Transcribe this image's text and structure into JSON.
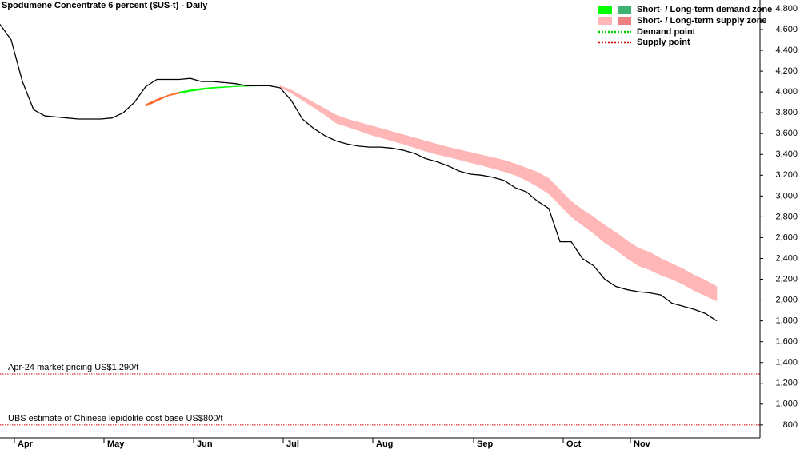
{
  "chart_data": {
    "type": "line",
    "title": "Spodumene Concentrate 6 percent ($US-t) - Daily",
    "categories": [
      null,
      "Apr",
      null,
      null,
      null,
      null,
      null,
      null,
      null,
      "May",
      null,
      null,
      null,
      null,
      null,
      null,
      null,
      "Jun",
      null,
      null,
      null,
      null,
      null,
      null,
      null,
      "Jul",
      null,
      null,
      null,
      null,
      null,
      null,
      null,
      "Aug",
      null,
      null,
      null,
      null,
      null,
      null,
      null,
      null,
      "Sep",
      null,
      null,
      null,
      null,
      null,
      null,
      null,
      "Oct",
      null,
      null,
      null,
      null,
      null,
      "Nov",
      null,
      null,
      null,
      null,
      null,
      null,
      null,
      null
    ],
    "series": [
      {
        "color": "#000000",
        "values": [
          4650,
          4500,
          4100,
          3830,
          3770,
          3760,
          3750,
          3740,
          3740,
          3740,
          3750,
          3800,
          3900,
          4050,
          4120,
          4120,
          4120,
          4130,
          4100,
          4100,
          4090,
          4080,
          4060,
          4060,
          4060,
          4040,
          3920,
          3740,
          3650,
          3580,
          3530,
          3500,
          3480,
          3470,
          3470,
          3460,
          3440,
          3410,
          3360,
          3330,
          3290,
          3240,
          3210,
          3200,
          3180,
          3150,
          3080,
          3040,
          2950,
          2880,
          2560,
          2560,
          2400,
          2330,
          2200,
          2130,
          2100,
          2080,
          2070,
          2050,
          1970,
          1940,
          1910,
          1870,
          1800
        ]
      }
    ],
    "zones": [
      {
        "name": "Short- / Long-term demand zone",
        "colors": [
          "#00ff00",
          "#3cb371"
        ],
        "upper": [
          null,
          null,
          null,
          null,
          null,
          null,
          null,
          null,
          null,
          null,
          null,
          null,
          null,
          null,
          null,
          null,
          4000,
          4020,
          4035,
          4045,
          4050,
          4055,
          4058,
          4060,
          4060,
          null,
          null,
          null,
          null,
          null,
          null,
          null,
          null,
          null,
          null,
          null,
          null,
          null,
          null,
          null,
          null,
          null,
          null,
          null,
          null,
          null,
          null,
          null,
          null,
          null,
          null,
          null,
          null,
          null,
          null,
          null,
          null,
          null,
          null,
          null,
          null,
          null,
          null,
          null,
          null
        ],
        "lower": [
          null,
          null,
          null,
          null,
          null,
          null,
          null,
          null,
          null,
          null,
          null,
          null,
          null,
          null,
          null,
          null,
          3985,
          4005,
          4020,
          4035,
          4042,
          4050,
          4054,
          4056,
          4058,
          null,
          null,
          null,
          null,
          null,
          null,
          null,
          null,
          null,
          null,
          null,
          null,
          null,
          null,
          null,
          null,
          null,
          null,
          null,
          null,
          null,
          null,
          null,
          null,
          null,
          null,
          null,
          null,
          null,
          null,
          null,
          null,
          null,
          null,
          null,
          null,
          null,
          null,
          null,
          null
        ]
      },
      {
        "name": "Short- / Long-term supply zone",
        "colors": [
          "#ffb6b6",
          "#f08080"
        ],
        "upper": [
          null,
          null,
          null,
          null,
          null,
          null,
          null,
          null,
          null,
          null,
          null,
          null,
          null,
          null,
          null,
          null,
          null,
          null,
          null,
          null,
          null,
          null,
          null,
          null,
          null,
          4060,
          4020,
          3960,
          3900,
          3840,
          3780,
          3740,
          3710,
          3680,
          3650,
          3620,
          3590,
          3560,
          3530,
          3500,
          3470,
          3445,
          3420,
          3395,
          3370,
          3345,
          3310,
          3270,
          3230,
          3170,
          3060,
          2950,
          2870,
          2800,
          2720,
          2650,
          2570,
          2500,
          2460,
          2400,
          2350,
          2300,
          2240,
          2190,
          2130
        ],
        "lower": [
          null,
          null,
          null,
          null,
          null,
          null,
          null,
          null,
          null,
          null,
          null,
          null,
          null,
          null,
          null,
          null,
          null,
          null,
          null,
          null,
          null,
          null,
          null,
          null,
          null,
          4040,
          3990,
          3920,
          3850,
          3780,
          3700,
          3665,
          3630,
          3590,
          3560,
          3530,
          3500,
          3465,
          3430,
          3400,
          3375,
          3350,
          3320,
          3295,
          3265,
          3235,
          3200,
          3150,
          3090,
          3020,
          2910,
          2800,
          2720,
          2640,
          2550,
          2480,
          2400,
          2330,
          2290,
          2240,
          2200,
          2150,
          2090,
          2040,
          1990
        ]
      },
      {
        "colors": [
          "#ff6a2a"
        ],
        "upper": [
          null,
          null,
          null,
          null,
          null,
          null,
          null,
          null,
          null,
          null,
          null,
          null,
          null,
          3880,
          3930,
          3970,
          4000,
          null,
          null,
          null,
          null,
          null,
          null,
          null,
          null,
          null,
          null,
          null,
          null,
          null,
          null,
          null,
          null,
          null,
          null,
          null,
          null,
          null,
          null,
          null,
          null,
          null,
          null,
          null,
          null,
          null,
          null,
          null,
          null,
          null,
          null,
          null,
          null,
          null,
          null,
          null,
          null,
          null,
          null,
          null,
          null,
          null,
          null,
          null,
          null
        ],
        "lower": [
          null,
          null,
          null,
          null,
          null,
          null,
          null,
          null,
          null,
          null,
          null,
          null,
          null,
          3860,
          3910,
          3960,
          3985,
          null,
          null,
          null,
          null,
          null,
          null,
          null,
          null,
          null,
          null,
          null,
          null,
          null,
          null,
          null,
          null,
          null,
          null,
          null,
          null,
          null,
          null,
          null,
          null,
          null,
          null,
          null,
          null,
          null,
          null,
          null,
          null,
          null,
          null,
          null,
          null,
          null,
          null,
          null,
          null,
          null,
          null,
          null,
          null,
          null,
          null,
          null,
          null
        ]
      }
    ],
    "points": [
      {
        "name": "Demand point",
        "color": "#00cc00"
      },
      {
        "name": "Supply point",
        "color": "#cc0000"
      }
    ],
    "hlines": [
      {
        "label": "Apr-24 market pricing US$1,290/t",
        "value": 1290,
        "color": "#cc0000"
      },
      {
        "label": "UBS estimate of Chinese lepidolite cost base US$800/t",
        "value": 800,
        "color": "#cc0000"
      }
    ],
    "ylim": [
      676,
      4884
    ],
    "yticks": [
      800,
      {
        "value": 1000,
        "label": "1,000"
      },
      {
        "value": 1200,
        "label": "1,200"
      },
      {
        "value": 1400,
        "label": "1,400"
      },
      {
        "value": 1600,
        "label": "1,600"
      },
      {
        "value": 1800,
        "label": "1,800"
      },
      {
        "value": 2000,
        "label": "2,000"
      },
      {
        "value": 2200,
        "label": "2,200"
      },
      {
        "value": 2400,
        "label": "2,400"
      },
      {
        "value": 2600,
        "label": "2,600"
      },
      {
        "value": 2800,
        "label": "2,800"
      },
      {
        "value": 3000,
        "label": "3,000"
      },
      {
        "value": 3200,
        "label": "3,200"
      },
      {
        "value": 3400,
        "label": "3,400"
      },
      {
        "value": 3600,
        "label": "3,600"
      },
      {
        "value": 3800,
        "label": "3,800"
      },
      {
        "value": 4000,
        "label": "4,000"
      },
      {
        "value": 4200,
        "label": "4,200"
      },
      {
        "value": 4400,
        "label": "4,400"
      },
      {
        "value": 4600,
        "label": "4,600"
      },
      {
        "value": 4800,
        "label": "4,800"
      }
    ],
    "grid": false
  }
}
